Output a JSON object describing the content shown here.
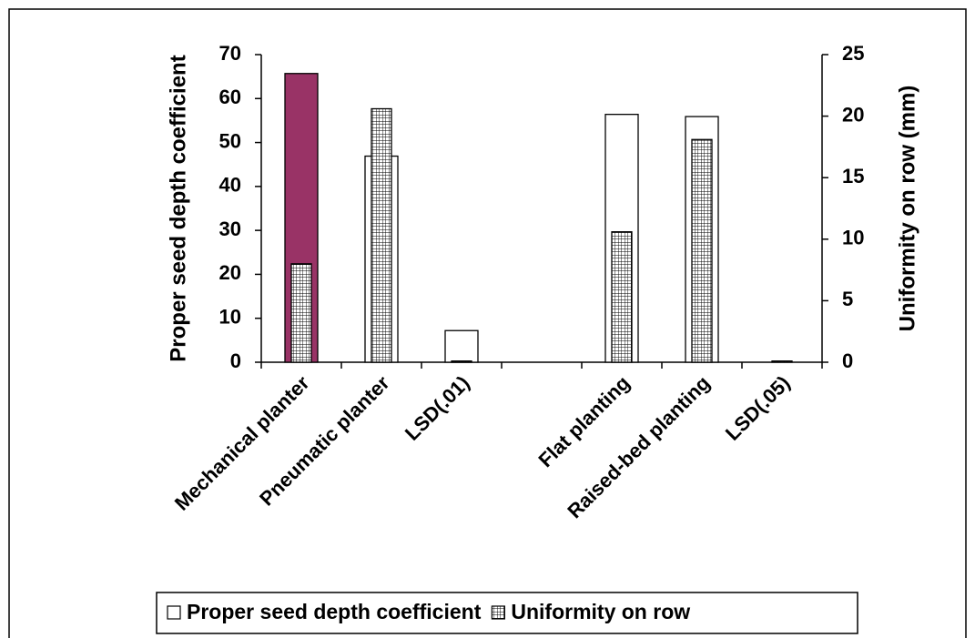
{
  "chart_data": {
    "type": "bar",
    "categories": [
      "Mechanical planter",
      "Pneumatic planter",
      "LSD(.01)",
      null,
      "Flat planting",
      "Raised-bed planting",
      "LSD(.05)"
    ],
    "series": [
      {
        "name": "Proper seed depth coefficient",
        "color": "#ffffff",
        "colors": [
          "#993366",
          "#ffffff",
          "#ffffff",
          "#ffffff",
          "#ffffff",
          "#ffffff",
          "#ffffff"
        ],
        "axis": "y",
        "values": [
          65.7,
          46.9,
          7.2,
          null,
          56.4,
          55.9,
          null
        ]
      },
      {
        "name": "Uniformity on row",
        "color": "#ffffff",
        "pattern": "grid",
        "axis": "y2",
        "values": [
          8.0,
          20.6,
          0.1,
          null,
          10.6,
          18.1,
          0.1
        ]
      }
    ],
    "ylabel": "Proper seed depth coefficient",
    "y2label": "Uniformity on row (mm)",
    "ylim": [
      0,
      70
    ],
    "yticks": [
      0,
      10,
      20,
      30,
      40,
      50,
      60,
      70
    ],
    "y2lim": [
      0,
      25
    ],
    "y2ticks": [
      0,
      5,
      10,
      15,
      20,
      25
    ],
    "grid": false,
    "legend": "bottom"
  }
}
